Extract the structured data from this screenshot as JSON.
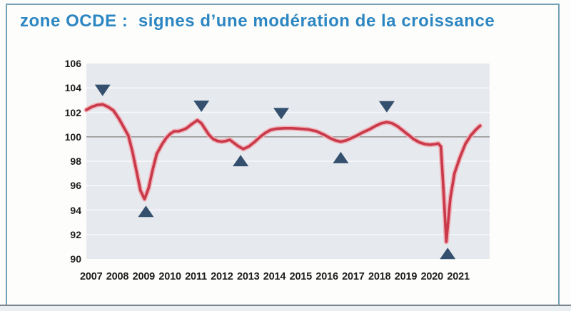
{
  "slide": {
    "title": "zone OCDE :  signes d’une modération de la croissance",
    "title_color": "#2c86c2"
  },
  "chart_data": {
    "type": "line",
    "title": "zone OCDE :  signes d’une modération de la croissance",
    "xlabel": "",
    "ylabel": "",
    "x_ticks": [
      "2007",
      "2008",
      "2009",
      "2010",
      "2011",
      "2012",
      "2013",
      "2014",
      "2015",
      "2016",
      "2017",
      "2018",
      "2019",
      "2020",
      "2021"
    ],
    "y_ticks": [
      106,
      104,
      102,
      100,
      98,
      96,
      94,
      92,
      90
    ],
    "xlim": [
      2007,
      2021.9
    ],
    "ylim": [
      90,
      106
    ],
    "baseline": 100,
    "grid": true,
    "legend": "none",
    "colors": {
      "plot_bg": "#e6e9ee",
      "gridline": "#f8f9fb",
      "baseline": "#999999",
      "line": "#c9394a",
      "line_halo": "#efb3b9",
      "marker": "#35506e"
    },
    "series": [
      {
        "color": "#c9394a",
        "points": [
          [
            2007.0,
            102.2
          ],
          [
            2007.2,
            102.45
          ],
          [
            2007.4,
            102.6
          ],
          [
            2007.6,
            102.65
          ],
          [
            2007.8,
            102.45
          ],
          [
            2008.0,
            102.15
          ],
          [
            2008.2,
            101.5
          ],
          [
            2008.4,
            100.7
          ],
          [
            2008.55,
            100.1
          ],
          [
            2008.7,
            98.8
          ],
          [
            2008.85,
            97.2
          ],
          [
            2009.0,
            95.6
          ],
          [
            2009.15,
            94.9
          ],
          [
            2009.3,
            95.8
          ],
          [
            2009.45,
            97.3
          ],
          [
            2009.6,
            98.6
          ],
          [
            2009.8,
            99.4
          ],
          [
            2009.95,
            99.9
          ],
          [
            2010.1,
            100.25
          ],
          [
            2010.25,
            100.45
          ],
          [
            2010.4,
            100.45
          ],
          [
            2010.55,
            100.55
          ],
          [
            2010.7,
            100.7
          ],
          [
            2010.9,
            101.05
          ],
          [
            2011.1,
            101.35
          ],
          [
            2011.25,
            101.1
          ],
          [
            2011.4,
            100.6
          ],
          [
            2011.55,
            100.1
          ],
          [
            2011.7,
            99.8
          ],
          [
            2011.85,
            99.65
          ],
          [
            2012.0,
            99.6
          ],
          [
            2012.15,
            99.65
          ],
          [
            2012.3,
            99.75
          ],
          [
            2012.45,
            99.5
          ],
          [
            2012.6,
            99.25
          ],
          [
            2012.8,
            99.0
          ],
          [
            2013.0,
            99.2
          ],
          [
            2013.2,
            99.55
          ],
          [
            2013.4,
            99.95
          ],
          [
            2013.6,
            100.3
          ],
          [
            2013.8,
            100.55
          ],
          [
            2014.0,
            100.65
          ],
          [
            2014.3,
            100.7
          ],
          [
            2014.6,
            100.7
          ],
          [
            2014.9,
            100.65
          ],
          [
            2015.2,
            100.6
          ],
          [
            2015.5,
            100.45
          ],
          [
            2015.8,
            100.15
          ],
          [
            2016.0,
            99.9
          ],
          [
            2016.2,
            99.7
          ],
          [
            2016.4,
            99.6
          ],
          [
            2016.6,
            99.7
          ],
          [
            2016.8,
            99.9
          ],
          [
            2017.0,
            100.1
          ],
          [
            2017.2,
            100.35
          ],
          [
            2017.45,
            100.6
          ],
          [
            2017.7,
            100.9
          ],
          [
            2017.9,
            101.1
          ],
          [
            2018.1,
            101.2
          ],
          [
            2018.3,
            101.1
          ],
          [
            2018.5,
            100.85
          ],
          [
            2018.7,
            100.5
          ],
          [
            2018.9,
            100.15
          ],
          [
            2019.1,
            99.8
          ],
          [
            2019.3,
            99.55
          ],
          [
            2019.5,
            99.4
          ],
          [
            2019.7,
            99.35
          ],
          [
            2019.9,
            99.4
          ],
          [
            2020.0,
            99.45
          ],
          [
            2020.1,
            99.2
          ],
          [
            2020.2,
            95.5
          ],
          [
            2020.3,
            91.4
          ],
          [
            2020.45,
            95.0
          ],
          [
            2020.6,
            97.0
          ],
          [
            2020.8,
            98.3
          ],
          [
            2021.0,
            99.4
          ],
          [
            2021.2,
            100.1
          ],
          [
            2021.4,
            100.6
          ],
          [
            2021.55,
            100.9
          ]
        ]
      }
    ],
    "peak_markers": [
      [
        2007.6,
        103.8
      ],
      [
        2011.25,
        102.5
      ],
      [
        2014.2,
        101.9
      ],
      [
        2018.1,
        102.45
      ]
    ],
    "trough_markers": [
      [
        2009.2,
        93.9
      ],
      [
        2012.7,
        98.05
      ],
      [
        2016.4,
        98.3
      ],
      [
        2020.35,
        90.45
      ]
    ]
  }
}
